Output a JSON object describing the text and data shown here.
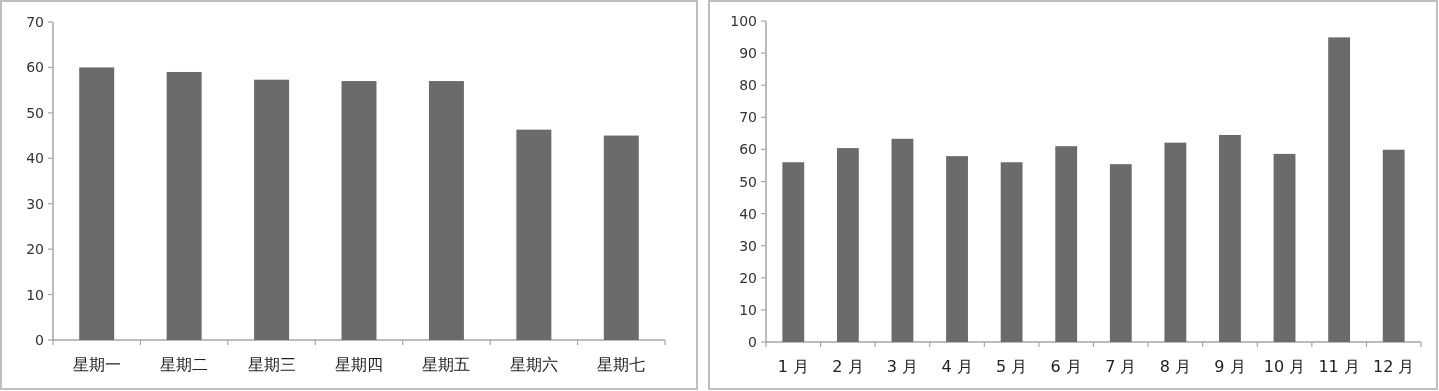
{
  "chart_data": [
    {
      "type": "bar",
      "categories": [
        "星期一",
        "星期二",
        "星期三",
        "星期四",
        "星期五",
        "星期六",
        "星期七"
      ],
      "values": [
        60,
        59,
        57.3,
        57,
        57,
        46.3,
        45
      ],
      "color": "#6b6b6b",
      "ylim": [
        0,
        70
      ],
      "yticks": [
        0,
        10,
        20,
        30,
        40,
        50,
        60,
        70
      ]
    },
    {
      "type": "bar",
      "categories": [
        "1 月",
        "2 月",
        "3 月",
        "4 月",
        "5 月",
        "6 月",
        "7 月",
        "8 月",
        "9 月",
        "10 月",
        "11 月",
        "12 月"
      ],
      "values": [
        56,
        60.4,
        63.3,
        57.9,
        56,
        61,
        55.4,
        62.1,
        64.5,
        58.6,
        94.9,
        59.9
      ],
      "color": "#6b6b6b",
      "ylim": [
        0,
        100
      ],
      "yticks": [
        0,
        10,
        20,
        30,
        40,
        50,
        60,
        70,
        80,
        90,
        100
      ]
    }
  ]
}
